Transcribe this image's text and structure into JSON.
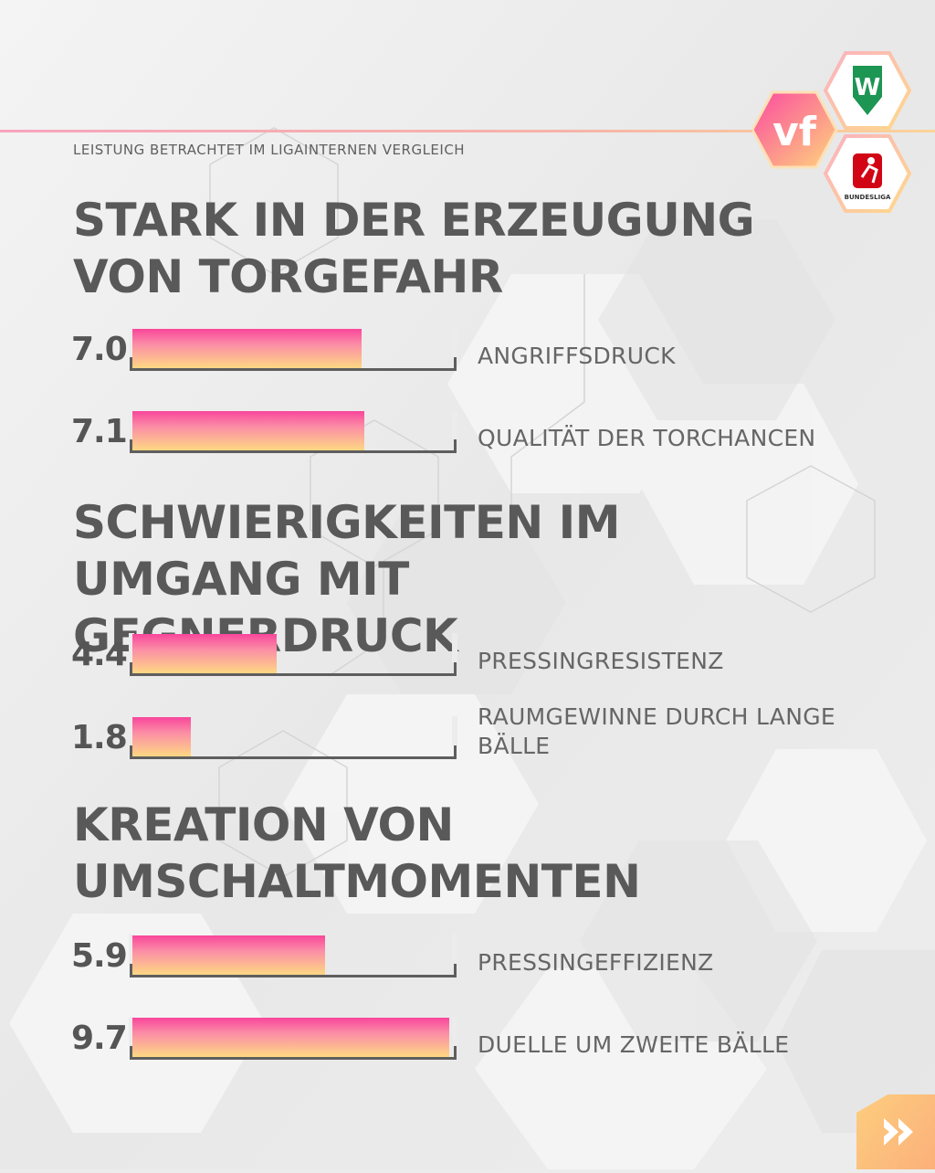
{
  "header": {
    "subtitle": "LEISTUNG BETRACHTET IM LIGAINTERNEN VERGLEICH",
    "logos": {
      "vf_text": "vf",
      "club_logo_icon": "werder-bremen-crest-icon",
      "league_logo_text": "BUNDESLIGA",
      "league_logo_icon": "bundesliga-logo-icon"
    }
  },
  "sections": [
    {
      "title": "STARK IN DER ERZEUGUNG\nVON TORGEFAHR",
      "metrics": [
        {
          "value_label": "7.0",
          "label": "ANGRIFFSDRUCK"
        },
        {
          "value_label": "7.1",
          "label": "QUALITÄT DER TORCHANCEN"
        }
      ]
    },
    {
      "title": "SCHWIERIGKEITEN IM\nUMGANG MIT GEGNERDRUCK",
      "metrics": [
        {
          "value_label": "4.4",
          "label": "PRESSINGRESISTENZ"
        },
        {
          "value_label": "1.8",
          "label": "RAUMGEWINNE DURCH LANGE BÄLLE"
        }
      ]
    },
    {
      "title": "KREATION VON\nUMSCHALTMOMENTEN",
      "metrics": [
        {
          "value_label": "5.9",
          "label": "PRESSINGEFFIZIENZ"
        },
        {
          "value_label": "9.7",
          "label": "DUELLE UM ZWEITE BÄLLE"
        }
      ]
    }
  ],
  "chart_data": {
    "type": "bar",
    "orientation": "horizontal",
    "title": "LEISTUNG BETRACHTET IM LIGAINTERNEN VERGLEICH",
    "categories": [
      "ANGRIFFSDRUCK",
      "QUALITÄT DER TORCHANCEN",
      "PRESSINGRESISTENZ",
      "RAUMGEWINNE DURCH LANGE BÄLLE",
      "PRESSINGEFFIZIENZ",
      "DUELLE UM ZWEITE BÄLLE"
    ],
    "values": [
      7.0,
      7.1,
      4.4,
      1.8,
      5.9,
      9.7
    ],
    "xlim": [
      0,
      10
    ],
    "colors": {
      "top": "#f9469b",
      "bottom": "#fed883",
      "axis": "#5e5e5e"
    }
  },
  "navigation": {
    "next_icon": "double-chevron-right-icon"
  }
}
